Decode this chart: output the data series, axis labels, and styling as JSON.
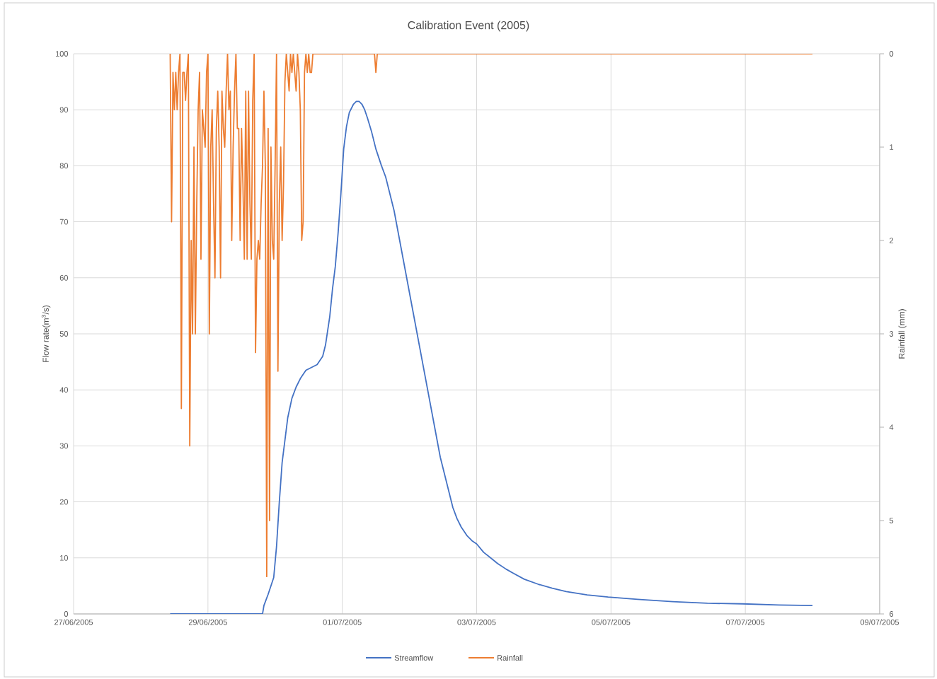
{
  "chart_data": {
    "type": "line",
    "title": "Calibration Event (2005)",
    "ylabel": "Flow rate(m$^{3}$/s)",
    "y2label": "Rainfall (mm)",
    "xlim": [
      "2005-06-27",
      "2005-07-09"
    ],
    "xticks": [
      {
        "value": "2005-06-27",
        "label": "27/06/2005"
      },
      {
        "value": "2005-06-29",
        "label": "29/06/2005"
      },
      {
        "value": "2005-07-01",
        "label": "01/07/2005"
      },
      {
        "value": "2005-07-03",
        "label": "03/07/2005"
      },
      {
        "value": "2005-07-05",
        "label": "05/07/2005"
      },
      {
        "value": "2005-07-07",
        "label": "07/07/2005"
      },
      {
        "value": "2005-07-09",
        "label": "09/07/2005"
      }
    ],
    "ylim": [
      0,
      100
    ],
    "yticks": [
      0,
      10,
      20,
      30,
      40,
      50,
      60,
      70,
      80,
      90,
      100
    ],
    "y2lim": [
      6,
      0
    ],
    "y2ticks": [
      0,
      1,
      2,
      3,
      4,
      5,
      6
    ],
    "grid": true,
    "legend": "bottom",
    "marker": "none",
    "line_style": "solid",
    "series": [
      {
        "name": "Streamflow",
        "color": "#4472c4",
        "axis": "y",
        "x": [
          "2005-06-28T10:30",
          "2005-06-29T19:30",
          "2005-06-29T20:00",
          "2005-06-29T21:30",
          "2005-06-29T23:30",
          "2005-06-30T00:30",
          "2005-06-30T01:30",
          "2005-06-30T02:30",
          "2005-06-30T03:30",
          "2005-06-30T04:30",
          "2005-06-30T06:00",
          "2005-06-30T07:30",
          "2005-06-30T09:00",
          "2005-06-30T11:00",
          "2005-06-30T13:00",
          "2005-06-30T15:00",
          "2005-06-30T17:00",
          "2005-06-30T18:00",
          "2005-06-30T19:30",
          "2005-06-30T20:30",
          "2005-06-30T21:30",
          "2005-06-30T22:30",
          "2005-06-30T23:30",
          "2005-07-01T00:30",
          "2005-07-01T01:30",
          "2005-07-01T02:30",
          "2005-07-01T04:00",
          "2005-07-01T05:00",
          "2005-07-01T06:00",
          "2005-07-01T07:00",
          "2005-07-01T08:00",
          "2005-07-01T09:00",
          "2005-07-01T10:30",
          "2005-07-01T12:00",
          "2005-07-01T14:00",
          "2005-07-01T15:30",
          "2005-07-01T17:00",
          "2005-07-01T18:30",
          "2005-07-01T20:00",
          "2005-07-01T21:30",
          "2005-07-01T23:00",
          "2005-07-02T00:30",
          "2005-07-02T02:00",
          "2005-07-02T03:30",
          "2005-07-02T05:00",
          "2005-07-02T06:30",
          "2005-07-02T08:00",
          "2005-07-02T09:30",
          "2005-07-02T11:00",
          "2005-07-02T12:30",
          "2005-07-02T14:00",
          "2005-07-02T15:30",
          "2005-07-02T17:00",
          "2005-07-02T18:30",
          "2005-07-02T20:30",
          "2005-07-02T22:30",
          "2005-07-03T00:00",
          "2005-07-03T02:30",
          "2005-07-03T05:00",
          "2005-07-03T07:30",
          "2005-07-03T10:30",
          "2005-07-03T13:00",
          "2005-07-03T17:00",
          "2005-07-03T22:00",
          "2005-07-04T03:00",
          "2005-07-04T08:00",
          "2005-07-04T15:30",
          "2005-07-04T23:00",
          "2005-07-05T09:30",
          "2005-07-05T22:00",
          "2005-07-06T10:30",
          "2005-07-06T23:00",
          "2005-07-07T12:00",
          "2005-07-08T00:00"
        ],
        "values": [
          0,
          0,
          1.5,
          3.5,
          6.5,
          12,
          20,
          27,
          31,
          35,
          38.5,
          40.5,
          42,
          43.5,
          44,
          44.5,
          46,
          48,
          53,
          58,
          62,
          68,
          75,
          83,
          87,
          89.5,
          91,
          91.5,
          91.5,
          91,
          90,
          88.5,
          86,
          83,
          80,
          78,
          75,
          72,
          68,
          64,
          60,
          56,
          52,
          48,
          44,
          40,
          36,
          32,
          28,
          25,
          22,
          19,
          17,
          15.5,
          14,
          13,
          12.5,
          11,
          10,
          9,
          8,
          7.3,
          6.2,
          5.3,
          4.6,
          4.0,
          3.4,
          3.0,
          2.6,
          2.2,
          1.9,
          1.8,
          1.6,
          1.5
        ]
      },
      {
        "name": "Rainfall",
        "color": "#ed7d31",
        "axis": "y2",
        "x": [
          "2005-06-28T10:30",
          "2005-06-28T11:00",
          "2005-06-28T11:30",
          "2005-06-28T12:00",
          "2005-06-28T12:30",
          "2005-06-28T13:00",
          "2005-06-28T13:30",
          "2005-06-28T14:00",
          "2005-06-28T14:30",
          "2005-06-28T15:00",
          "2005-06-28T15:30",
          "2005-06-28T16:00",
          "2005-06-28T16:30",
          "2005-06-28T17:00",
          "2005-06-28T17:30",
          "2005-06-28T18:00",
          "2005-06-28T18:30",
          "2005-06-28T19:00",
          "2005-06-28T19:30",
          "2005-06-28T20:00",
          "2005-06-28T20:30",
          "2005-06-28T21:00",
          "2005-06-28T21:30",
          "2005-06-28T22:00",
          "2005-06-28T22:30",
          "2005-06-28T23:00",
          "2005-06-28T23:30",
          "2005-06-29T00:00",
          "2005-06-29T00:30",
          "2005-06-29T01:00",
          "2005-06-29T01:30",
          "2005-06-29T02:00",
          "2005-06-29T02:30",
          "2005-06-29T03:00",
          "2005-06-29T03:30",
          "2005-06-29T04:00",
          "2005-06-29T04:30",
          "2005-06-29T05:00",
          "2005-06-29T05:30",
          "2005-06-29T06:00",
          "2005-06-29T06:30",
          "2005-06-29T07:00",
          "2005-06-29T07:30",
          "2005-06-29T08:00",
          "2005-06-29T08:30",
          "2005-06-29T09:00",
          "2005-06-29T09:30",
          "2005-06-29T10:00",
          "2005-06-29T10:30",
          "2005-06-29T11:00",
          "2005-06-29T11:30",
          "2005-06-29T12:00",
          "2005-06-29T12:30",
          "2005-06-29T13:00",
          "2005-06-29T13:30",
          "2005-06-29T14:00",
          "2005-06-29T14:30",
          "2005-06-29T15:00",
          "2005-06-29T15:30",
          "2005-06-29T16:00",
          "2005-06-29T16:30",
          "2005-06-29T17:00",
          "2005-06-29T17:30",
          "2005-06-29T18:00",
          "2005-06-29T18:30",
          "2005-06-29T19:00",
          "2005-06-29T19:30",
          "2005-06-29T20:00",
          "2005-06-29T20:30",
          "2005-06-29T21:00",
          "2005-06-29T21:30",
          "2005-06-29T22:00",
          "2005-06-29T22:30",
          "2005-06-29T23:00",
          "2005-06-29T23:30",
          "2005-06-30T00:00",
          "2005-06-30T00:30",
          "2005-06-30T01:00",
          "2005-06-30T01:30",
          "2005-06-30T02:00",
          "2005-06-30T02:30",
          "2005-06-30T03:00",
          "2005-06-30T03:30",
          "2005-06-30T04:00",
          "2005-06-30T04:30",
          "2005-06-30T05:00",
          "2005-06-30T05:30",
          "2005-06-30T06:00",
          "2005-06-30T06:30",
          "2005-06-30T07:00",
          "2005-06-30T07:30",
          "2005-06-30T08:00",
          "2005-06-30T08:30",
          "2005-06-30T09:00",
          "2005-06-30T09:30",
          "2005-06-30T10:00",
          "2005-06-30T10:30",
          "2005-06-30T11:00",
          "2005-06-30T11:30",
          "2005-06-30T12:00",
          "2005-06-30T12:30",
          "2005-06-30T13:00",
          "2005-06-30T13:30",
          "2005-07-01T11:30",
          "2005-07-01T12:00",
          "2005-07-01T12:30",
          "2005-07-08T00:00"
        ],
        "values": [
          0,
          1.8,
          0.2,
          0.6,
          0.2,
          0.6,
          0.2,
          0,
          3.8,
          0.2,
          0.2,
          0.5,
          0.2,
          0,
          4.2,
          2.0,
          3.0,
          1.0,
          3.0,
          1.6,
          0.6,
          0.2,
          2.2,
          0.6,
          0.8,
          1.0,
          0.2,
          0,
          3.0,
          1.0,
          0.6,
          1.6,
          2.4,
          0.8,
          0.4,
          1.0,
          2.4,
          0.4,
          0.8,
          1.0,
          0.4,
          0,
          0.6,
          0.4,
          2.0,
          1.0,
          0.4,
          0,
          0.8,
          0.8,
          2.0,
          0.8,
          1.4,
          2.2,
          0.4,
          2.2,
          0.4,
          1.6,
          2.2,
          0.5,
          0,
          3.2,
          2.2,
          2.0,
          2.2,
          1.6,
          1.2,
          0.4,
          1.2,
          5.6,
          0.8,
          5.0,
          1.0,
          2.0,
          2.2,
          1.2,
          0,
          3.4,
          1.6,
          1.0,
          2.0,
          1.4,
          0.3,
          0,
          0.2,
          0.4,
          0,
          0.2,
          0,
          0.2,
          0.4,
          0,
          0.2,
          0.6,
          2.0,
          1.8,
          0.2,
          0,
          0.2,
          0,
          0.2,
          0.2,
          0,
          0,
          0.2,
          0,
          0
        ]
      }
    ]
  }
}
